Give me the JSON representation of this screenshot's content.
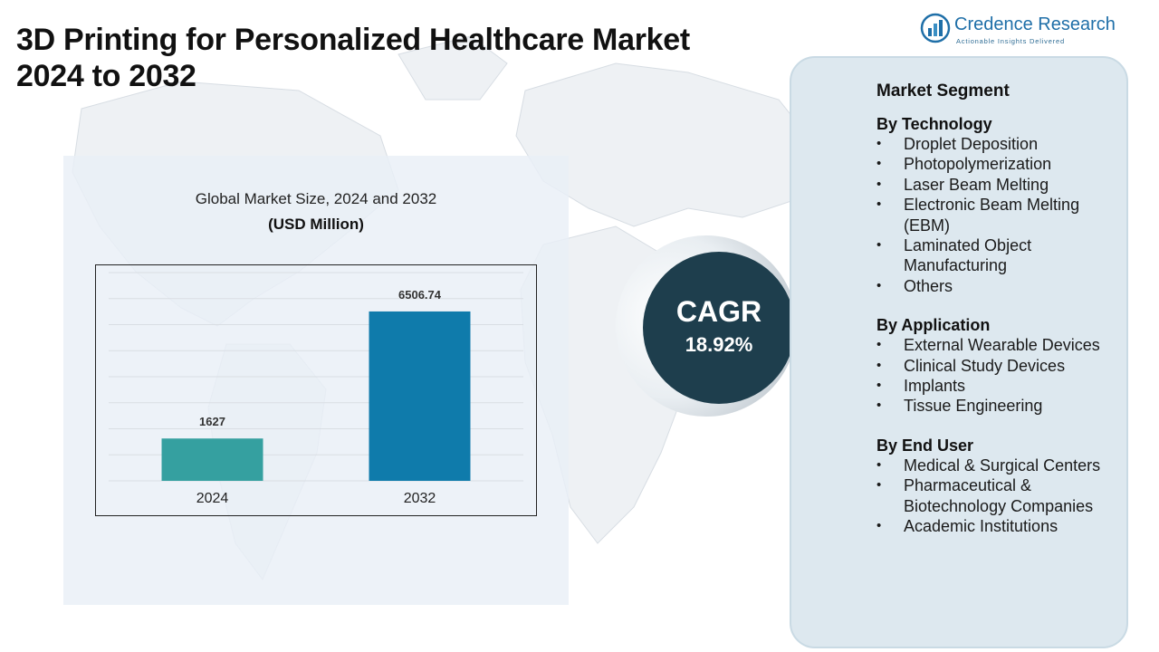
{
  "title_lines": [
    "3D Printing for Personalized Healthcare Market",
    "2024 to 2032"
  ],
  "logo": {
    "name": "Credence Research",
    "tagline": "Actionable Insights Delivered",
    "icon": "bar-chart-logo-icon"
  },
  "chart_data": {
    "type": "bar",
    "title": "Global Market Size, 2024 and 2032",
    "subtitle": "(USD Million)",
    "categories": [
      "2024",
      "2032"
    ],
    "values": [
      1627,
      6506.74
    ],
    "value_labels": [
      "1627",
      "6506.74"
    ],
    "bar_colors": [
      "#35a0a0",
      "#0f7bab"
    ],
    "ylim": [
      0,
      8000
    ],
    "grid": true,
    "xlabel": "",
    "ylabel": ""
  },
  "cagr": {
    "label": "CAGR",
    "value": "18.92%"
  },
  "segments": {
    "heading": "Market Segment",
    "groups": [
      {
        "title": "By Technology",
        "items": [
          "Droplet Deposition",
          "Photopolymerization",
          "Laser Beam Melting",
          "Electronic Beam Melting (EBM)",
          "Laminated Object Manufacturing",
          "Others"
        ]
      },
      {
        "title": "By Application",
        "items": [
          "External Wearable Devices",
          "Clinical Study Devices",
          "Implants",
          "Tissue Engineering"
        ]
      },
      {
        "title": "By End User",
        "items": [
          "Medical & Surgical Centers",
          "Pharmaceutical & Biotechnology Companies",
          "Academic Institutions"
        ]
      }
    ]
  }
}
